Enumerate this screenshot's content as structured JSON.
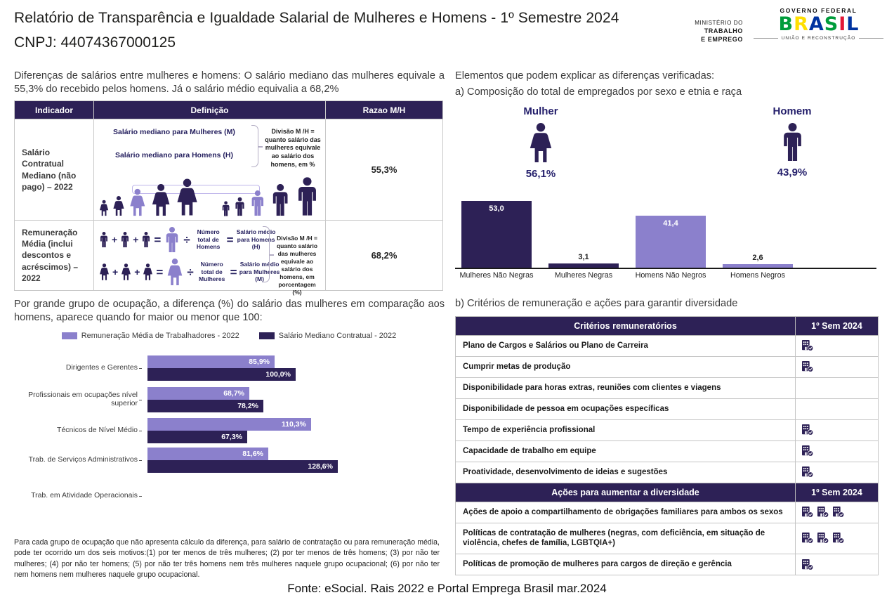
{
  "colors": {
    "dark_purple": "#2d2156",
    "light_purple": "#8b80cc",
    "navy_text": "#241f5e"
  },
  "header": {
    "title": "Relatório de Transparência e Igualdade Salarial de Mulheres e Homens - 1º Semestre 2024",
    "cnpj": "CNPJ: 44074367000125",
    "ministry": {
      "line1": "MINISTÉRIO DO",
      "line2": "TRABALHO",
      "line3": "E EMPREGO"
    },
    "gov": {
      "top": "GOVERNO FEDERAL",
      "word": "BRASIL",
      "letters": [
        "B",
        "R",
        "A",
        "S",
        "I",
        "L"
      ],
      "letter_colors": [
        "#009c3b",
        "#ffdf00",
        "#0033a0",
        "#009c3b",
        "#e31837",
        "#0033a0"
      ],
      "bottom": "UNIÃO E RECONSTRUÇÃO"
    }
  },
  "left": {
    "intro": "Diferenças de salários entre mulheres e homens: O salário mediano das mulheres equivale a 55,3% do recebido pelos homens. Já o salário médio equivalia a 68,2%",
    "indicator_table": {
      "headers": [
        "Indicador",
        "Definição",
        "Razao M/H"
      ],
      "ops": {
        "plus": "+",
        "equals": "=",
        "divide": "÷"
      },
      "rows": [
        {
          "indicator": "Salário Contratual Mediano (não pago) – 2022",
          "def_label_women": "Salário mediano para Mulheres (M)",
          "def_label_men": "Salário mediano para Homens (H)",
          "def_note": "Divisão M /H = quanto salário das mulheres equivale ao salário dos homens, em %",
          "ratio": "55,3%"
        },
        {
          "indicator": "Remuneração Média (inclui descontos e acréscimos) – 2022",
          "men_total": "Número total de Homens",
          "men_salary": "Salário médio para Homens (H)",
          "women_total": "Número total de Mulheres",
          "women_salary": "Salário médio para Mulheres (M)",
          "def_note": "Divisão M /H = quanto salário das mulheres equivale ao salário dos homens, em porcentagem (%)",
          "ratio": "68,2%"
        }
      ]
    },
    "occupation_text": "Por grande grupo de ocupação, a diferença (%) do salário das mulheres em comparação aos homens, aparece quando for maior ou menor que 100:",
    "footnote": "Para cada grupo de ocupação que não apresenta cálculo da diferença, para salário de contratação ou para remuneração média, pode ter ocorrido um dos seis motivos:(1) por ter menos de três mulheres; (2) por ter menos de três homens; (3) por não ter mulheres; (4) por não ter homens; (5) por não ter três homens nem três mulheres naquele grupo ocupacional; (6) por não ter nem homens nem mulheres naquele grupo ocupacional."
  },
  "right": {
    "elements_title": "Elementos que podem explicar as diferenças verificadas:",
    "section_a": "a) Composição do total de empregados por sexo e etnia e raça",
    "gender": [
      {
        "label": "Mulher",
        "value": "56,1%"
      },
      {
        "label": "Homem",
        "value": "43,9%"
      }
    ],
    "section_b": "b) Critérios de remuneração e ações para garantir diversidade",
    "criteria_table": {
      "header": {
        "label": "Critérios remuneratórios",
        "period": "1º Sem 2024"
      },
      "rows": [
        {
          "label": "Plano de Cargos e Salários ou Plano de Carreira",
          "marks": 1
        },
        {
          "label": "Cumprir metas de produção",
          "marks": 1
        },
        {
          "label": "Disponibilidade para horas extras, reuniões com clientes e viagens",
          "marks": 0
        },
        {
          "label": "Disponibilidade de pessoa em ocupações específicas",
          "marks": 0
        },
        {
          "label": "Tempo de experiência profissional",
          "marks": 1
        },
        {
          "label": "Capacidade de trabalho em equipe",
          "marks": 1
        },
        {
          "label": "Proatividade, desenvolvimento de ideias e sugestões",
          "marks": 1
        }
      ],
      "actions_header": {
        "label": "Ações para aumentar a diversidade",
        "period": "1º Sem 2024"
      },
      "actions_rows": [
        {
          "label": "Ações de apoio a compartilhamento de obrigações familiares para ambos os sexos",
          "marks": 3
        },
        {
          "label": "Políticas de contratação de mulheres (negras, com deficiência, em situação de violência, chefes de família, LGBTQIA+)",
          "marks": 3
        },
        {
          "label": "Políticas de promoção de mulheres para cargos de direção e gerência",
          "marks": 1
        }
      ]
    }
  },
  "chart_data": [
    {
      "type": "bar",
      "title": "a) Composição do total de empregados por sexo e etnia e raça",
      "categories": [
        "Mulheres Não Negras",
        "Mulheres Negras",
        "Homens Não Negros",
        "Homens Negros"
      ],
      "values": [
        53.0,
        3.1,
        41.4,
        2.6
      ],
      "labels": [
        "53,0",
        "3,1",
        "41,4",
        "2,6"
      ],
      "bar_colors": [
        "#2d2156",
        "#2d2156",
        "#8b80cc",
        "#8b80cc"
      ],
      "ylim": [
        0,
        60
      ],
      "grid": false,
      "unit": "percent"
    },
    {
      "type": "horizontal-bar",
      "title": "Diferença (%) do salário das mulheres em comparação aos homens por grande grupo de ocupação",
      "categories": [
        "Dirigentes e Gerentes",
        "Profissionais em ocupações nível superior",
        "Técnicos de Nível Médio",
        "Trab. de Serviços Administrativos",
        "Trab. em Atividade Operacionais"
      ],
      "series": [
        {
          "name": "Remuneração Média de Trabalhadores - 2022",
          "color": "#8b80cc",
          "values": [
            85.9,
            68.7,
            110.3,
            81.6,
            null
          ],
          "labels": [
            "85,9%",
            "68,7%",
            "110,3%",
            "81,6%",
            ""
          ]
        },
        {
          "name": "Salário Mediano Contratual - 2022",
          "color": "#2d2156",
          "values": [
            100.0,
            78.2,
            67.3,
            128.6,
            null
          ],
          "labels": [
            "100,0%",
            "78,2%",
            "67,3%",
            "128,6%",
            ""
          ]
        }
      ],
      "xlim": [
        0,
        135
      ],
      "legend_position": "top",
      "grid": false
    }
  ],
  "footer": {
    "source": "Fonte: eSocial. Rais 2022 e Portal Emprega Brasil mar.2024"
  }
}
